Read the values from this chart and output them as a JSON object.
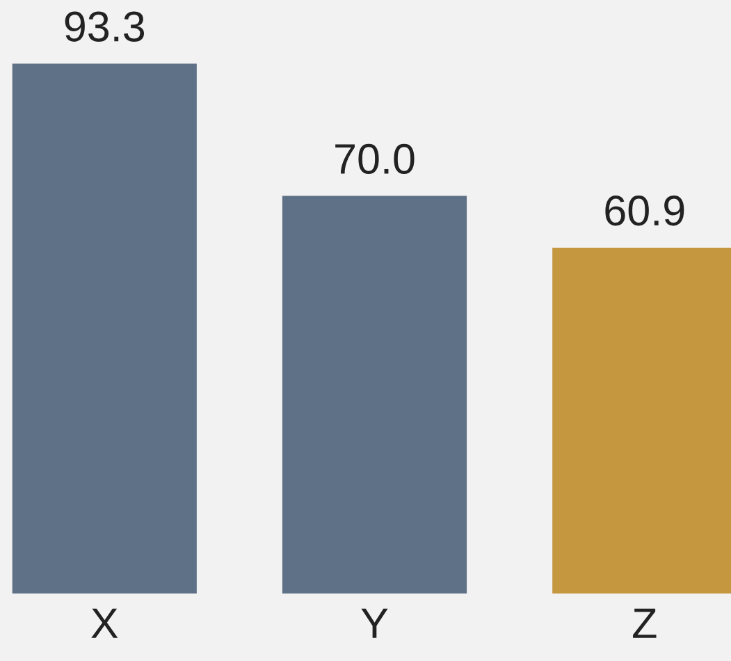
{
  "chart_data": {
    "type": "bar",
    "categories": [
      "X",
      "Y",
      "Z"
    ],
    "values": [
      93.3,
      70.0,
      60.9
    ],
    "colors": [
      "#5f7186",
      "#5f7186",
      "#c59840"
    ],
    "value_labels": [
      "93.3",
      "70.0",
      "60.9"
    ],
    "grid": false,
    "legend": false
  }
}
